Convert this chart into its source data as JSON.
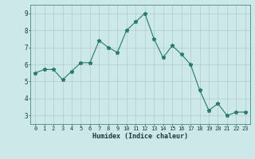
{
  "x": [
    0,
    1,
    2,
    3,
    4,
    5,
    6,
    7,
    8,
    9,
    10,
    11,
    12,
    13,
    14,
    15,
    16,
    17,
    18,
    19,
    20,
    21,
    22,
    23
  ],
  "y": [
    5.5,
    5.7,
    5.7,
    5.1,
    5.6,
    6.1,
    6.1,
    7.4,
    7.0,
    6.7,
    8.0,
    8.5,
    9.0,
    7.5,
    6.4,
    7.1,
    6.6,
    6.0,
    4.5,
    3.3,
    3.7,
    3.0,
    3.2,
    3.2
  ],
  "xlabel": "Humidex (Indice chaleur)",
  "xlim": [
    -0.5,
    23.5
  ],
  "ylim": [
    2.5,
    9.5
  ],
  "yticks": [
    3,
    4,
    5,
    6,
    7,
    8,
    9
  ],
  "xticks": [
    0,
    1,
    2,
    3,
    4,
    5,
    6,
    7,
    8,
    9,
    10,
    11,
    12,
    13,
    14,
    15,
    16,
    17,
    18,
    19,
    20,
    21,
    22,
    23
  ],
  "line_color": "#2a7a6a",
  "marker": "*",
  "marker_size": 3.5,
  "bg_color": "#cce8e8",
  "grid_color": "#b0cccc",
  "spine_color": "#4a8a7a",
  "font_color": "#1a3a3a",
  "xlabel_fontsize": 6.0,
  "tick_fontsize": 5.0
}
